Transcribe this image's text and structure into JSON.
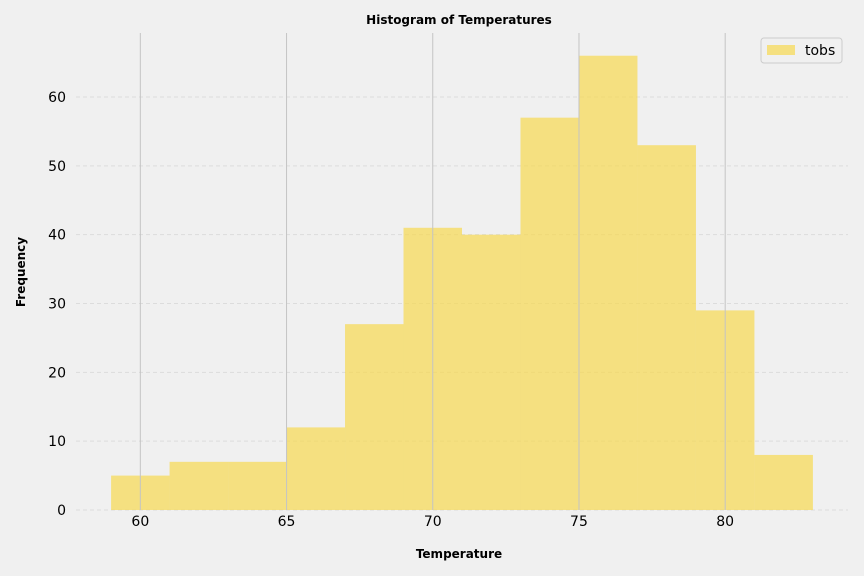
{
  "chart_data": {
    "type": "bar",
    "title": "Histogram of Temperatures",
    "xlabel": "Temperature",
    "ylabel": "Frequency",
    "bins": [
      {
        "x0": 59,
        "x1": 61,
        "count": 5
      },
      {
        "x0": 61,
        "x1": 63,
        "count": 7
      },
      {
        "x0": 63,
        "x1": 65,
        "count": 7
      },
      {
        "x0": 65,
        "x1": 67,
        "count": 12
      },
      {
        "x0": 67,
        "x1": 69,
        "count": 27
      },
      {
        "x0": 69,
        "x1": 71,
        "count": 41
      },
      {
        "x0": 71,
        "x1": 73,
        "count": 40
      },
      {
        "x0": 73,
        "x1": 75,
        "count": 57
      },
      {
        "x0": 75,
        "x1": 77,
        "count": 66
      },
      {
        "x0": 77,
        "x1": 79,
        "count": 53
      },
      {
        "x0": 79,
        "x1": 81,
        "count": 29
      },
      {
        "x0": 81,
        "x1": 83,
        "count": 8
      }
    ],
    "xlim": [
      57.8,
      84.2
    ],
    "ylim": [
      0,
      69.3
    ],
    "xticks": [
      60,
      65,
      70,
      75,
      80
    ],
    "xtick_labels": [
      "60",
      "65",
      "70",
      "75",
      "80"
    ],
    "yticks": [
      0,
      10,
      20,
      30,
      40,
      50,
      60
    ],
    "ytick_labels": [
      "0",
      "10",
      "20",
      "30",
      "40",
      "50",
      "60"
    ],
    "legend": {
      "label": "tobs",
      "position": "top-right"
    },
    "colors": {
      "bar": "#f7d950",
      "background": "#f0f0f0",
      "grid_x": "#c4c4c4",
      "grid_y": "#dcdcdc"
    },
    "grid": {
      "x": true,
      "y": true
    }
  }
}
